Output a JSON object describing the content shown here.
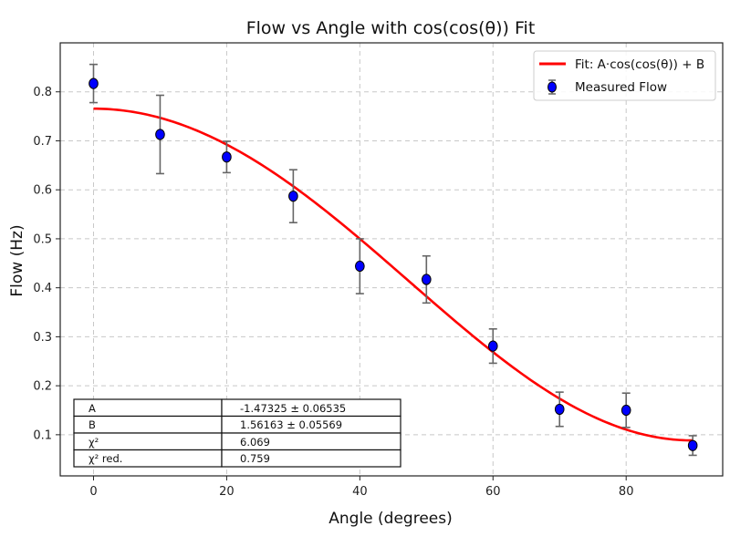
{
  "chart_data": {
    "type": "scatter",
    "title": "Flow vs Angle with cos(cos(θ)) Fit",
    "xlabel": "Angle (degrees)",
    "ylabel": "Flow (Hz)",
    "xlim": [
      -5,
      94.5
    ],
    "ylim": [
      0.016,
      0.9
    ],
    "xticks": [
      0,
      20,
      40,
      60,
      80
    ],
    "yticks": [
      0.1,
      0.2,
      0.3,
      0.4,
      0.5,
      0.6,
      0.7,
      0.8
    ],
    "xtick_labels": [
      "0",
      "20",
      "40",
      "60",
      "80"
    ],
    "ytick_labels": [
      "0.1",
      "0.2",
      "0.3",
      "0.4",
      "0.5",
      "0.6",
      "0.7",
      "0.8"
    ],
    "grid": true,
    "legend_position": "top-right",
    "series": [
      {
        "name": "Measured Flow",
        "kind": "errorbar",
        "color": "#0000ff",
        "edge_color": "#000000",
        "errorbar_color": "#666666",
        "x": [
          0,
          10,
          20,
          30,
          40,
          50,
          60,
          70,
          80,
          90
        ],
        "y": [
          0.817,
          0.713,
          0.667,
          0.587,
          0.444,
          0.417,
          0.281,
          0.152,
          0.15,
          0.078
        ],
        "yerr": [
          0.039,
          0.08,
          0.032,
          0.054,
          0.056,
          0.048,
          0.035,
          0.035,
          0.035,
          0.02
        ]
      },
      {
        "name": "Fit: A·cos(cos(θ)) + B",
        "kind": "line",
        "color": "#ff0000",
        "model": "A*cos(cos(theta_rad)) + B",
        "params": {
          "A": -1.47325,
          "B": 1.56163
        },
        "x_range": [
          0,
          90
        ]
      }
    ],
    "legend": [
      {
        "label": "Fit: A·cos(cos(θ)) + B",
        "type": "line",
        "color": "#ff0000"
      },
      {
        "label": "Measured Flow",
        "type": "errorbar-marker",
        "color": "#0000ff"
      }
    ],
    "table": {
      "position": "bottom-left",
      "rows": [
        {
          "name": "A",
          "value": "-1.47325 ± 0.06535"
        },
        {
          "name": "B",
          "value": "1.56163 ± 0.05569"
        },
        {
          "name": "χ²",
          "value": "6.069"
        },
        {
          "name": "χ² red.",
          "value": "0.759"
        }
      ]
    }
  }
}
